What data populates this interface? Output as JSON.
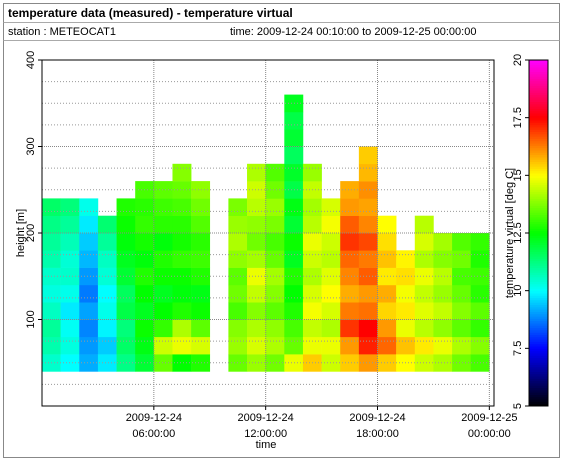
{
  "chart_data": {
    "type": "heatmap",
    "title": "temperature data (measured) - temperature virtual",
    "station": "station : METEOCAT1",
    "time_range": "time: 2009-12-24 00:10:00 to 2009-12-25 00:00:00",
    "xlabel": "time",
    "ylabel": "height [m]",
    "colorbar_label": "temperature virtual [deg C]",
    "xlim": [
      "2009-12-24T00:00:00",
      "2009-12-25T00:15:00"
    ],
    "xticks": [
      {
        "value": "2009-12-24T06:00:00",
        "label": "2009-12-24 06:00:00"
      },
      {
        "value": "2009-12-24T12:00:00",
        "label": "2009-12-24 12:00:00"
      },
      {
        "value": "2009-12-24T18:00:00",
        "label": "2009-12-24 18:00:00"
      },
      {
        "value": "2009-12-25T00:00:00",
        "label": "2009-12-25 00:00:00"
      }
    ],
    "ylim": [
      0,
      400
    ],
    "yticks": [
      100,
      200,
      300,
      400
    ],
    "minor_yticks": [
      25,
      50,
      75,
      125,
      150,
      175,
      225,
      250,
      275,
      325,
      350,
      375
    ],
    "grid": true,
    "clim": [
      5,
      20
    ],
    "cticks": [
      5,
      7.5,
      10,
      12.5,
      15,
      17.5,
      20
    ],
    "colormap": [
      [
        5,
        "#000000"
      ],
      [
        7.5,
        "#0000ff"
      ],
      [
        10,
        "#00ffff"
      ],
      [
        12.5,
        "#00ff00"
      ],
      [
        15,
        "#ffff00"
      ],
      [
        17.5,
        "#ff0000"
      ],
      [
        20,
        "#ff00ff"
      ]
    ],
    "x": [
      "2009-12-24T00:00:00",
      "2009-12-24T01:00:00",
      "2009-12-24T02:00:00",
      "2009-12-24T03:00:00",
      "2009-12-24T04:00:00",
      "2009-12-24T05:00:00",
      "2009-12-24T06:00:00",
      "2009-12-24T07:00:00",
      "2009-12-24T08:00:00",
      "2009-12-24T09:00:00",
      "2009-12-24T10:00:00",
      "2009-12-24T11:00:00",
      "2009-12-24T12:00:00",
      "2009-12-24T13:00:00",
      "2009-12-24T14:00:00",
      "2009-12-24T15:00:00",
      "2009-12-24T16:00:00",
      "2009-12-24T17:00:00",
      "2009-12-24T18:00:00",
      "2009-12-24T19:00:00",
      "2009-12-24T20:00:00",
      "2009-12-24T21:00:00",
      "2009-12-24T22:00:00",
      "2009-12-24T23:00:00",
      "2009-12-25T00:00:00"
    ],
    "y": [
      40,
      60,
      80,
      100,
      120,
      140,
      160,
      180,
      200,
      220,
      240,
      260,
      280,
      300,
      320,
      340,
      360
    ],
    "z": [
      [
        10.5,
        10.8,
        11,
        10.6,
        10.3,
        10.5,
        10.8,
        11,
        11.2,
        11.5,
        null,
        null,
        null,
        null,
        null,
        null
      ],
      [
        10,
        10.3,
        10.1,
        9.8,
        10.2,
        10.5,
        10.4,
        10.7,
        11,
        11.3,
        null,
        null,
        null,
        null,
        null,
        null
      ],
      [
        9.2,
        9,
        8.8,
        9.1,
        8.7,
        9,
        9.3,
        9.5,
        9.8,
        10.2,
        null,
        null,
        null,
        null,
        null,
        null
      ],
      [
        9.8,
        9.5,
        9.9,
        10.2,
        10,
        10.4,
        10.6,
        11,
        11.4,
        null,
        null,
        null,
        null,
        null,
        null,
        null
      ],
      [
        11.2,
        11.5,
        11.3,
        11.8,
        11.6,
        12,
        12.2,
        12.4,
        12.6,
        12.8,
        null,
        null,
        null,
        null,
        null,
        null
      ],
      [
        12,
        12.3,
        12.6,
        12.2,
        12.5,
        12.8,
        12.4,
        12.7,
        13,
        12.9,
        13.2,
        null,
        null,
        null,
        null,
        null
      ],
      [
        13.5,
        14.5,
        13,
        12.5,
        12.2,
        12.6,
        12.8,
        12.4,
        12.9,
        13.1,
        13.4,
        null,
        null,
        null,
        null,
        null
      ],
      [
        12.5,
        14.8,
        14.2,
        12.8,
        12.4,
        12.6,
        13,
        12.7,
        12.9,
        13.2,
        13.5,
        13.8,
        null,
        null,
        null,
        null
      ],
      [
        12.8,
        14.6,
        13.4,
        12.6,
        12.3,
        12.8,
        13.1,
        12.9,
        13.3,
        13.6,
        13.9,
        null,
        null,
        null,
        null,
        null
      ],
      [
        null,
        null,
        null,
        null,
        null,
        null,
        null,
        null,
        null,
        null,
        null,
        null,
        null,
        null,
        null,
        null
      ],
      [
        13.5,
        14,
        13.8,
        13.2,
        13.6,
        13.4,
        13.9,
        14.2,
        14,
        13.7,
        null,
        null,
        null,
        null,
        null,
        null
      ],
      [
        14,
        14.6,
        14.2,
        13.8,
        14.4,
        14.8,
        14.1,
        13.6,
        13.9,
        14.3,
        14.5,
        14.2,
        null,
        null,
        null,
        null
      ],
      [
        13.6,
        14.2,
        13.9,
        13.4,
        13.8,
        14.1,
        13.5,
        13.2,
        13.7,
        14,
        13.6,
        13.3,
        null,
        null,
        null,
        null
      ],
      [
        14.8,
        13.5,
        13.2,
        12.8,
        12.5,
        12.8,
        12.2,
        12.6,
        12,
        12.3,
        11.8,
        12.1,
        11.6,
        12,
        11.8,
        12.2
      ],
      [
        15.5,
        14.8,
        14.4,
        14.9,
        14.6,
        14.2,
        14.5,
        14.8,
        14.3,
        14.1,
        14.4,
        14,
        null,
        null,
        null,
        null
      ],
      [
        14.5,
        14.8,
        14.2,
        14.6,
        15,
        14.7,
        14.3,
        14.5,
        14.9,
        14.6,
        null,
        null,
        null,
        null,
        null,
        null
      ],
      [
        15.5,
        16,
        17,
        16.3,
        15.8,
        16.2,
        16.5,
        17,
        16.6,
        16,
        15.8,
        null,
        null,
        null,
        null,
        null
      ],
      [
        16,
        17.2,
        17.5,
        16.4,
        16,
        16.6,
        16.3,
        16.8,
        16.2,
        15.9,
        16.1,
        15.7,
        15.5,
        null,
        null,
        null
      ],
      [
        15.5,
        16.5,
        16,
        15.4,
        15.8,
        15.2,
        15.6,
        15.3,
        15,
        null,
        null,
        null,
        null,
        null,
        null,
        null
      ],
      [
        15,
        15.6,
        14.8,
        15.2,
        14.9,
        15.3,
        15.1,
        null,
        null,
        null,
        null,
        null,
        null,
        null,
        null,
        null
      ],
      [
        14.5,
        15.2,
        14.3,
        14.7,
        14.4,
        14.8,
        14.2,
        14.6,
        14.3,
        null,
        null,
        null,
        null,
        null,
        null,
        null
      ],
      [
        14.2,
        14.8,
        13.9,
        14.4,
        14,
        14.3,
        13.8,
        14.1,
        null,
        null,
        null,
        null,
        null,
        null,
        null,
        null
      ],
      [
        13.6,
        14.2,
        13.4,
        13.8,
        13.5,
        13.2,
        13.6,
        13.3,
        null,
        null,
        null,
        null,
        null,
        null,
        null,
        null
      ],
      [
        13.2,
        13.8,
        13,
        13.4,
        12.9,
        13.1,
        12.8,
        13,
        null,
        null,
        null,
        null,
        null,
        null,
        null,
        null
      ]
    ]
  }
}
